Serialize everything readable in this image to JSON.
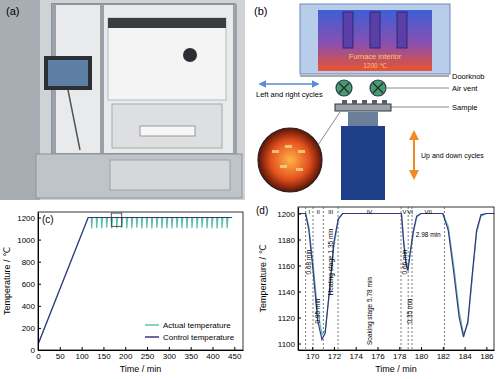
{
  "photo": {
    "label": "(a)"
  },
  "diagram": {
    "label": "(b)",
    "furnace": "Furnace interior",
    "temperature": "1200 ℃",
    "doorknob": "Doorknob",
    "air_vent": "Air vent",
    "sample": "Sample",
    "horizontal": "Left and right cycles",
    "vertical": "Up and down cycles"
  },
  "chart_data": [
    {
      "type": "line",
      "label": "(c)",
      "x_label": "Time / min",
      "y_label": "Temperature / ℃",
      "xlim": [
        0,
        470
      ],
      "ylim": [
        0,
        1250
      ],
      "xticks": [
        0,
        50,
        100,
        150,
        200,
        250,
        300,
        350,
        400,
        450
      ],
      "yticks": [
        0,
        200,
        400,
        600,
        800,
        1000,
        1200
      ],
      "grid": false,
      "legend": "lower right",
      "zoom_box": {
        "x": [
          168,
          192
        ],
        "y": [
          1120,
          1240
        ]
      },
      "x": [
        0,
        115,
        122,
        123,
        125,
        133.5,
        134.5,
        136.5,
        145,
        146,
        148,
        156.5,
        157.5,
        159.5,
        168,
        169,
        171,
        179.5,
        180.5,
        182.5,
        191,
        192,
        194,
        202.5,
        203.5,
        205.5,
        214,
        215,
        217,
        225.5,
        226.5,
        228.5,
        237,
        238,
        240,
        248.5,
        249.5,
        251.5,
        260,
        261,
        263,
        271.5,
        272.5,
        274.5,
        283,
        284,
        286,
        294.5,
        295.5,
        297.5,
        306,
        307,
        309,
        317.5,
        318.5,
        320.5,
        329,
        330,
        332,
        340.5,
        341.5,
        343.5,
        352,
        353,
        355,
        363.5,
        364.5,
        366.5,
        375,
        376,
        378,
        386.5,
        387.5,
        389.5,
        398,
        399,
        401,
        409.5,
        410.5,
        412.5,
        421,
        422,
        424,
        432.5,
        433.5,
        435.5,
        445
      ],
      "series": [
        {
          "name": "Actual temperature",
          "color": "#5cbfb0",
          "values": [
            50,
            1200,
            1200,
            1100,
            1200,
            1200,
            1105,
            1200,
            1200,
            1102,
            1200,
            1200,
            1108,
            1200,
            1200,
            1100,
            1200,
            1200,
            1104,
            1200,
            1200,
            1106,
            1200,
            1200,
            1100,
            1200,
            1200,
            1103,
            1200,
            1200,
            1108,
            1200,
            1200,
            1101,
            1200,
            1200,
            1105,
            1200,
            1200,
            1100,
            1200,
            1200,
            1107,
            1200,
            1200,
            1102,
            1200,
            1200,
            1104,
            1200,
            1200,
            1100,
            1200,
            1200,
            1106,
            1200,
            1200,
            1103,
            1200,
            1200,
            1100,
            1200,
            1200,
            1105,
            1200,
            1200,
            1102,
            1200,
            1200,
            1108,
            1200,
            1200,
            1100,
            1200,
            1200,
            1104,
            1200,
            1200,
            1101,
            1200,
            1200,
            1106,
            1200,
            1200,
            1103,
            1200,
            1200
          ]
        },
        {
          "name": "Control temperature",
          "color": "#3a3580",
          "values": [
            50,
            1200,
            1200,
            1200,
            1200,
            1200,
            1200,
            1200,
            1200,
            1200,
            1200,
            1200,
            1200,
            1200,
            1200,
            1200,
            1200,
            1200,
            1200,
            1200,
            1200,
            1200,
            1200,
            1200,
            1200,
            1200,
            1200,
            1200,
            1200,
            1200,
            1200,
            1200,
            1200,
            1200,
            1200,
            1200,
            1200,
            1200,
            1200,
            1200,
            1200,
            1200,
            1200,
            1200,
            1200,
            1200,
            1200,
            1200,
            1200,
            1200,
            1200,
            1200,
            1200,
            1200,
            1200,
            1200,
            1200,
            1200,
            1200,
            1200,
            1200,
            1200,
            1200,
            1200,
            1200,
            1200,
            1200,
            1200,
            1200,
            1200,
            1200,
            1200,
            1200,
            1200,
            1200,
            1200,
            1200,
            1200,
            1200,
            1200,
            1200,
            1200,
            1200,
            1200,
            1200,
            1200,
            1200
          ]
        }
      ]
    },
    {
      "type": "line",
      "label": "(d)",
      "x_label": "Time / min",
      "y_label": "Temperature / ℃",
      "xlim": [
        168.7,
        186.7
      ],
      "ylim": [
        1095,
        1205
      ],
      "xticks": [
        170,
        172,
        174,
        176,
        178,
        180,
        182,
        184,
        186
      ],
      "yticks": [
        1100,
        1120,
        1140,
        1160,
        1180,
        1200
      ],
      "grid": false,
      "stages": [
        {
          "name": "I",
          "start": 169.4,
          "end": 170.08,
          "label": "0.68 min"
        },
        {
          "name": "II",
          "start": 170.08,
          "end": 171.03,
          "label": "0.95 min"
        },
        {
          "name": "III",
          "start": 171.03,
          "end": 172.38,
          "label": "Heating stage 1.35 min"
        },
        {
          "name": "IV",
          "start": 172.38,
          "end": 178.16,
          "label": "Soaking stage 5.78 min"
        },
        {
          "name": "V",
          "start": 178.16,
          "end": 178.82,
          "label": "0.66 min"
        },
        {
          "name": "VI",
          "start": 178.82,
          "end": 179.17,
          "label": "0.35 min"
        },
        {
          "name": "VII",
          "start": 179.17,
          "end": 182.15,
          "label": "2.98 min"
        }
      ],
      "x": [
        168.7,
        169.4,
        169.7,
        170.1,
        170.5,
        170.9,
        171.2,
        171.6,
        172.0,
        172.4,
        172.8,
        178.2,
        178.4,
        178.6,
        178.8,
        179.0,
        179.3,
        179.6,
        180.0,
        182.0,
        182.5,
        183.0,
        183.5,
        183.9,
        184.3,
        184.7,
        185.1,
        185.5,
        186.0,
        186.7
      ],
      "series": [
        {
          "color": "#5cbfb0",
          "values": [
            1200,
            1200,
            1190,
            1160,
            1125,
            1107,
            1110,
            1140,
            1175,
            1195,
            1200,
            1200,
            1180,
            1165,
            1158,
            1168,
            1185,
            1197,
            1200,
            1200,
            1190,
            1160,
            1125,
            1107,
            1115,
            1150,
            1185,
            1198,
            1200,
            1200
          ]
        },
        {
          "color": "#3a3580",
          "values": [
            1200,
            1200,
            1187,
            1155,
            1118,
            1103,
            1108,
            1142,
            1178,
            1196,
            1200,
            1200,
            1178,
            1162,
            1156,
            1170,
            1187,
            1198,
            1200,
            1200,
            1187,
            1155,
            1120,
            1105,
            1117,
            1153,
            1187,
            1199,
            1200,
            1200
          ]
        }
      ]
    }
  ]
}
